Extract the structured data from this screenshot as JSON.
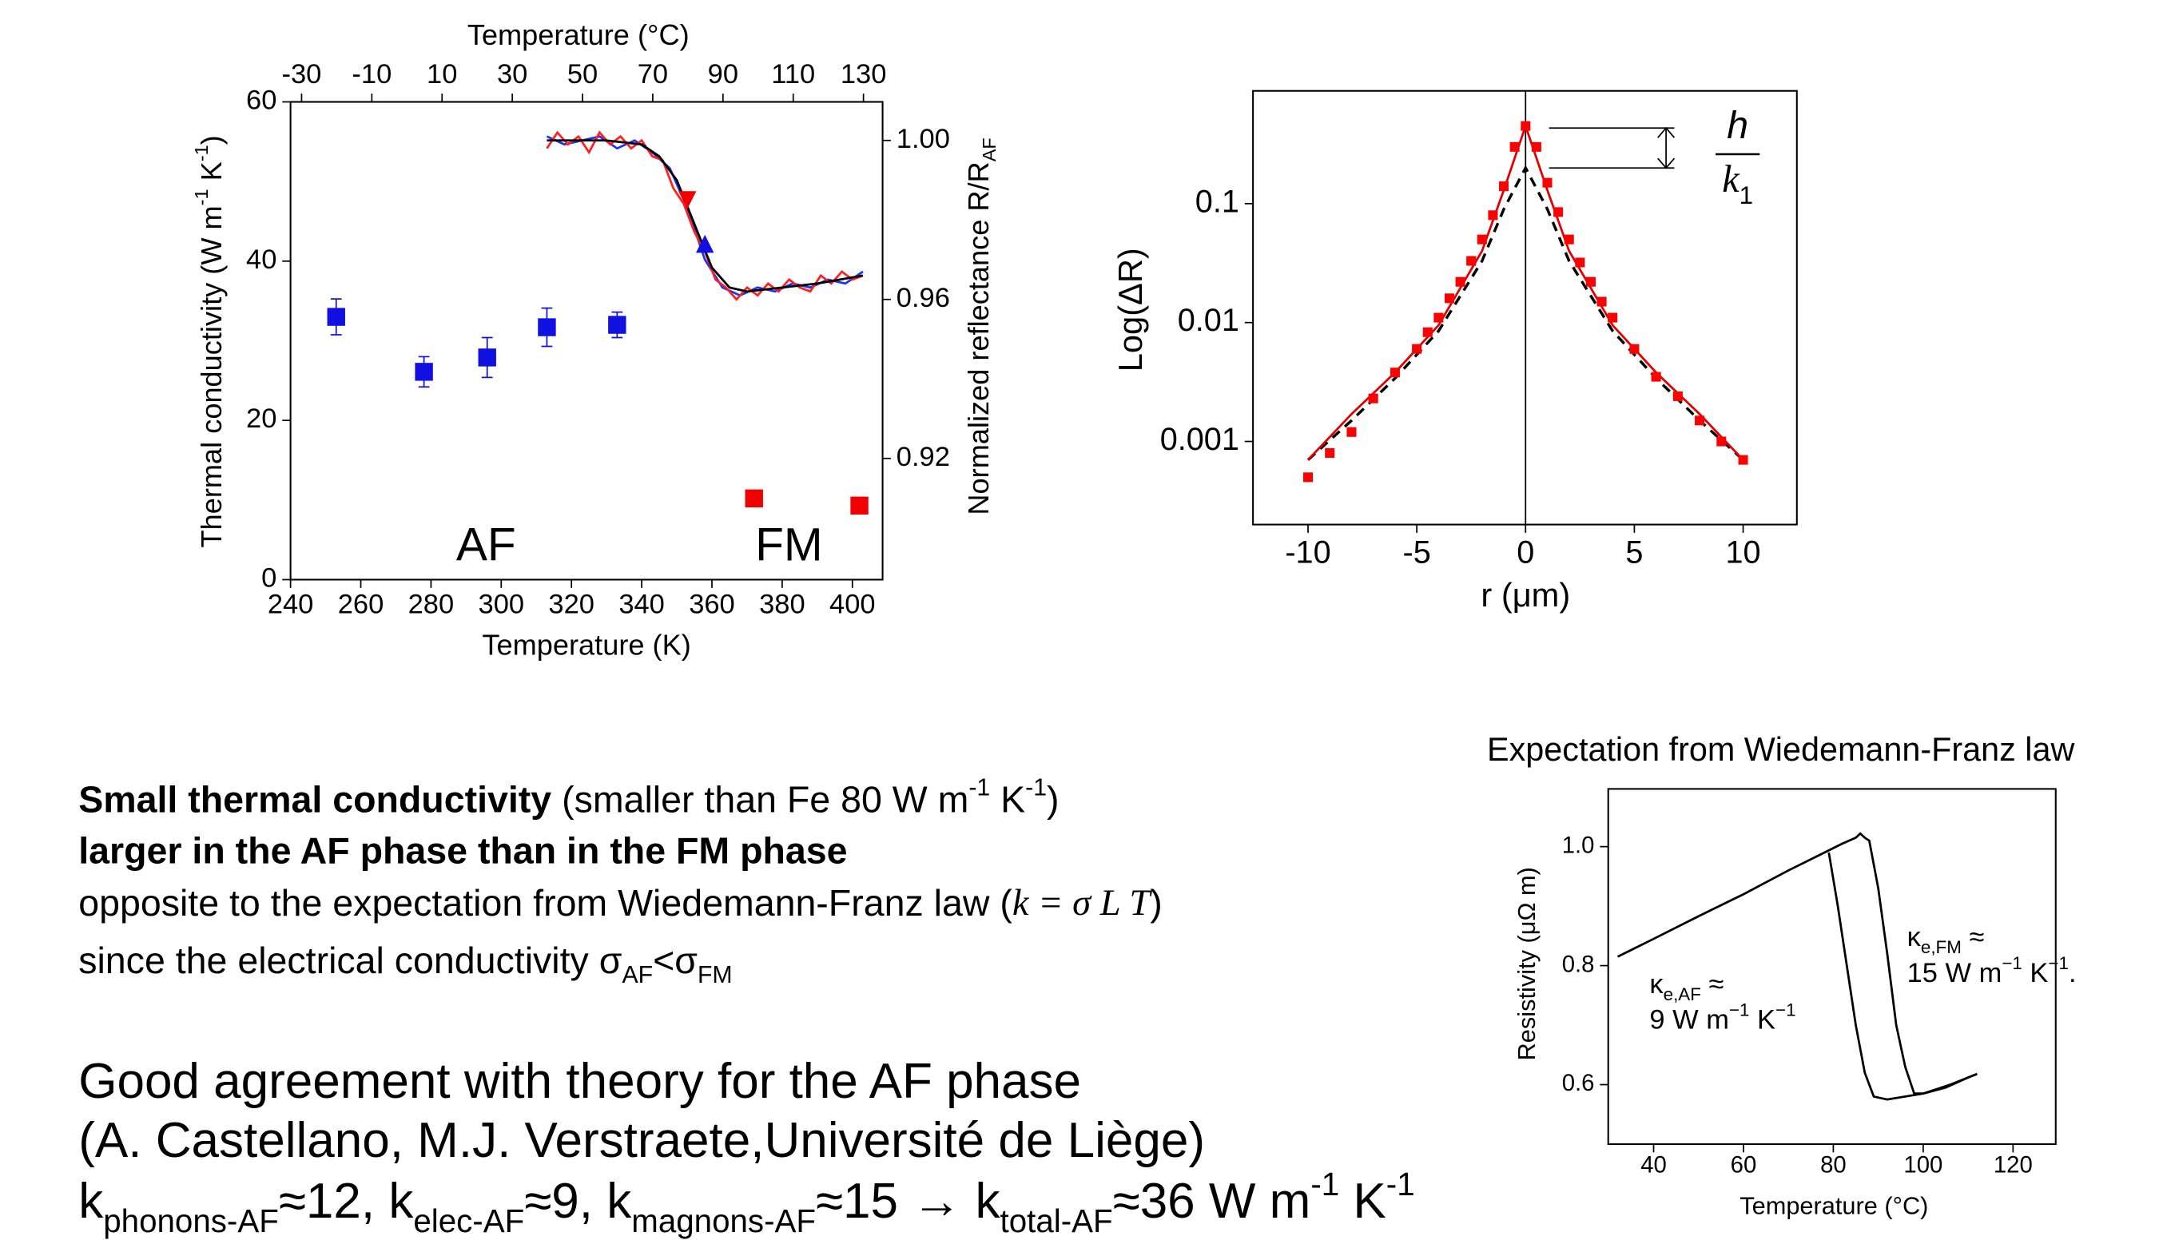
{
  "chart_data": [
    {
      "type": "scatter",
      "xlabel": "Temperature (K)",
      "ylabel": [
        {
          "text": "Thermal conductivity (W m"
        },
        {
          "text": "-1",
          "style": "sup"
        },
        {
          "text": " K"
        },
        {
          "text": "-1",
          "style": "sup"
        },
        {
          "text": ")"
        }
      ],
      "x2label": "Temperature (°C)",
      "y2label": [
        {
          "text": "Normalized reflectance R/R"
        },
        {
          "text": "AF",
          "style": "sub"
        }
      ],
      "xlim": [
        240,
        408.6
      ],
      "xticks": [
        240,
        260,
        280,
        300,
        320,
        340,
        360,
        380,
        400
      ],
      "x2lim": [
        -33.15,
        135.45
      ],
      "x2ticks": [
        -30,
        -10,
        10,
        30,
        50,
        70,
        90,
        110,
        130
      ],
      "ylim": [
        0,
        60
      ],
      "yticks": [
        0,
        20,
        40,
        60
      ],
      "y2lim": [
        0.8895,
        1.0097
      ],
      "y2ticks": [
        0.92,
        0.96,
        {
          "value": 1,
          "label": "1.00"
        }
      ],
      "series": [
        {
          "color": "#1010e0",
          "mode": "markers",
          "marker": "square",
          "x": [
            253,
            278,
            296,
            313,
            333
          ],
          "values": [
            33,
            26.1,
            27.9,
            31.7,
            32
          ],
          "errors": [
            2.25,
            1.9,
            2.5,
            2.4,
            1.6
          ]
        },
        {
          "color": "#f00000",
          "mode": "markers",
          "marker": "square",
          "x": [
            372,
            402
          ],
          "values": [
            10.2,
            9.3
          ]
        },
        {
          "color": "#2030ff",
          "mode": "line",
          "axis": "y2",
          "x": [
            313,
            318,
            323,
            328,
            333,
            338,
            343,
            348,
            353,
            358,
            363,
            368,
            373,
            378,
            383,
            388,
            393,
            398,
            403
          ],
          "values": [
            1.001,
            0.999,
            1.0,
            1.001,
            0.998,
            1.0,
            0.997,
            0.993,
            0.983,
            0.97,
            0.963,
            0.961,
            0.963,
            0.962,
            0.964,
            0.963,
            0.965,
            0.964,
            0.967
          ]
        },
        {
          "color": "#ff2020",
          "mode": "line",
          "axis": "y2",
          "x": [
            313,
            316,
            319,
            322,
            325,
            328,
            331,
            334,
            337,
            340,
            343,
            346,
            349,
            352,
            355,
            358,
            361,
            364,
            367,
            370,
            373,
            376,
            379,
            382,
            385,
            388,
            391,
            394,
            397,
            400,
            403
          ],
          "values": [
            0.998,
            1.002,
            0.999,
            1.001,
            0.997,
            1.002,
            0.999,
            1.001,
            0.998,
            1.0,
            0.996,
            0.995,
            0.988,
            0.984,
            0.977,
            0.972,
            0.965,
            0.963,
            0.96,
            0.963,
            0.961,
            0.964,
            0.962,
            0.965,
            0.963,
            0.962,
            0.966,
            0.964,
            0.967,
            0.965,
            0.966
          ]
        },
        {
          "color": "#000000",
          "mode": "line",
          "axis": "y2",
          "x": [
            313,
            330,
            340,
            345,
            350,
            355,
            360,
            365,
            370,
            380,
            390,
            403
          ],
          "values": [
            1.0,
            1.0,
            0.999,
            0.996,
            0.99,
            0.979,
            0.968,
            0.963,
            0.962,
            0.963,
            0.964,
            0.966
          ]
        },
        {
          "color": "#f00000",
          "mode": "markers",
          "marker": "triangle-down",
          "axis": "y2",
          "x": [
            353
          ],
          "values": [
            0.985
          ]
        },
        {
          "color": "#1010e0",
          "mode": "markers",
          "marker": "triangle-up",
          "axis": "y2",
          "x": [
            358
          ],
          "values": [
            0.974
          ]
        }
      ],
      "annotations": [
        {
          "text": "AF",
          "color": "#1818e0"
        },
        {
          "text": "FM",
          "color": "#f00000"
        }
      ]
    },
    {
      "type": "scatter",
      "xlabel": "r (μm)",
      "ylabel": "Log(ΔR)",
      "yscale": "log",
      "zeroline": true,
      "xlim": [
        -12.53,
        12.47
      ],
      "xticks": [
        -10,
        -5,
        0,
        5,
        10
      ],
      "ylim": [
        0.0002,
        0.888
      ],
      "yticks": [
        0.001,
        0.01,
        0.1
      ],
      "series": [
        {
          "color": "#000000",
          "mode": "dashed",
          "x": [
            -10,
            -8,
            -6,
            -4,
            -2,
            -1,
            0,
            1,
            2,
            4,
            6,
            8,
            10
          ],
          "values": [
            0.0007,
            0.0015,
            0.0034,
            0.0085,
            0.033,
            0.09,
            0.2,
            0.09,
            0.033,
            0.0085,
            0.0034,
            0.0015,
            0.0007
          ]
        },
        {
          "color": "#e00000",
          "mode": "line",
          "x": [
            -10,
            -8,
            -6,
            -4,
            -2,
            -1,
            0,
            1,
            2,
            4,
            6,
            8,
            10
          ],
          "values": [
            0.0007,
            0.0017,
            0.0038,
            0.0095,
            0.04,
            0.13,
            0.45,
            0.13,
            0.04,
            0.0095,
            0.0038,
            0.0017,
            0.0007
          ]
        },
        {
          "color": "#ff0000",
          "mode": "markers",
          "marker": "square",
          "x": [
            -10,
            -9,
            -8,
            -7,
            -6,
            -5,
            -4.5,
            -4,
            -3.5,
            -3,
            -2.5,
            -2,
            -1.5,
            -1,
            -0.5,
            0,
            0.5,
            1,
            1.5,
            2,
            2.5,
            3,
            3.5,
            4,
            5,
            6,
            7,
            8,
            9,
            10
          ],
          "values": [
            0.0005,
            0.0008,
            0.0012,
            0.0023,
            0.0038,
            0.006,
            0.0083,
            0.011,
            0.016,
            0.022,
            0.033,
            0.05,
            0.08,
            0.14,
            0.3,
            0.45,
            0.3,
            0.15,
            0.085,
            0.05,
            0.032,
            0.022,
            0.015,
            0.011,
            0.006,
            0.0035,
            0.0024,
            0.0015,
            0.001,
            0.0007
          ]
        }
      ],
      "annotations": [
        {
          "numerator": "h",
          "denominator": [
            {
              "text": "k",
              "style": "math"
            },
            {
              "text": "1",
              "style": "sub"
            }
          ]
        }
      ]
    },
    {
      "type": "line",
      "title": "Expectation from Wiedemann-Franz law",
      "xlabel": "Temperature (°C)",
      "ylabel": "Resistivity (μΩ m)",
      "xlim": [
        29.9,
        129.5
      ],
      "xticks": [
        40,
        60,
        80,
        100,
        120
      ],
      "ylim": [
        0.5,
        1.097
      ],
      "yticks": [
        0.6,
        0.8,
        {
          "value": 1,
          "label": "1.0"
        }
      ],
      "series": [
        {
          "color": "#000000",
          "mode": "line",
          "x": [
            32,
            40,
            50,
            60,
            70,
            78,
            82,
            85,
            86,
            87,
            88,
            90,
            92,
            94,
            96,
            98,
            100,
            105,
            110,
            112
          ],
          "values": [
            0.815,
            0.845,
            0.883,
            0.92,
            0.96,
            0.99,
            1.005,
            1.015,
            1.022,
            1.015,
            1.01,
            0.93,
            0.82,
            0.7,
            0.63,
            0.585,
            0.585,
            0.595,
            0.612,
            0.618
          ]
        },
        {
          "color": "#000000",
          "mode": "line",
          "x": [
            112,
            106,
            100,
            92,
            89,
            87,
            85,
            83,
            81,
            79
          ],
          "values": [
            0.618,
            0.6,
            0.585,
            0.575,
            0.58,
            0.62,
            0.7,
            0.8,
            0.9,
            0.99
          ]
        }
      ],
      "annotations": [
        {
          "lines": [
            [
              {
                "text": "κ"
              },
              {
                "text": "e,AF",
                "style": "sub"
              },
              {
                "text": " ≈"
              }
            ],
            [
              {
                "text": "9 W m"
              },
              {
                "text": "−1",
                "style": "sup"
              },
              {
                "text": " K"
              },
              {
                "text": "−1",
                "style": "sup"
              }
            ]
          ]
        },
        {
          "lines": [
            [
              {
                "text": "κ"
              },
              {
                "text": "e,FM",
                "style": "sub"
              },
              {
                "text": " ≈"
              }
            ],
            [
              {
                "text": "15 W m"
              },
              {
                "text": "−1",
                "style": "sup"
              },
              {
                "text": " K"
              },
              {
                "text": "−1",
                "style": "sup"
              },
              {
                "text": "."
              }
            ]
          ]
        }
      ]
    }
  ],
  "slide": {
    "text_lines": [
      [
        {
          "text": "Small thermal conductivity",
          "style": "bold"
        },
        {
          "text": " (smaller than Fe 80 W m"
        },
        {
          "text": "-1",
          "style": "sup"
        },
        {
          "text": " K"
        },
        {
          "text": "-1",
          "style": "sup"
        },
        {
          "text": ")"
        }
      ],
      [
        {
          "text": "larger in the AF phase than in the FM phase",
          "style": "bold"
        }
      ],
      [
        {
          "text": "opposite to the expectation from Wiedemann-Franz law ("
        },
        {
          "text": "k = σ L T",
          "style": "math"
        },
        {
          "text": ")"
        }
      ],
      [
        {
          "text": " since the electrical conductivity  σ"
        },
        {
          "text": "AF",
          "style": "sub"
        },
        {
          "text": "<σ"
        },
        {
          "text": "FM",
          "style": "sub"
        }
      ],
      [
        {
          "text": "Good agreement with theory for the AF phase"
        }
      ],
      [
        {
          "text": "(A. Castellano, M.J. Verstraete,Université de Liège)"
        }
      ],
      [
        {
          "text": "k"
        },
        {
          "text": "phonons-AF",
          "style": "sub"
        },
        {
          "text": "≈12, k"
        },
        {
          "text": "elec-AF",
          "style": "sub"
        },
        {
          "text": "≈9, k"
        },
        {
          "text": "magnons-AF",
          "style": "sub"
        },
        {
          "text": "≈15  →  k"
        },
        {
          "text": "total-AF",
          "style": "sub"
        },
        {
          "text": "≈36 W m"
        },
        {
          "text": "-1",
          "style": "sup"
        },
        {
          "text": " K"
        },
        {
          "text": "-1",
          "style": "sup"
        }
      ]
    ]
  }
}
